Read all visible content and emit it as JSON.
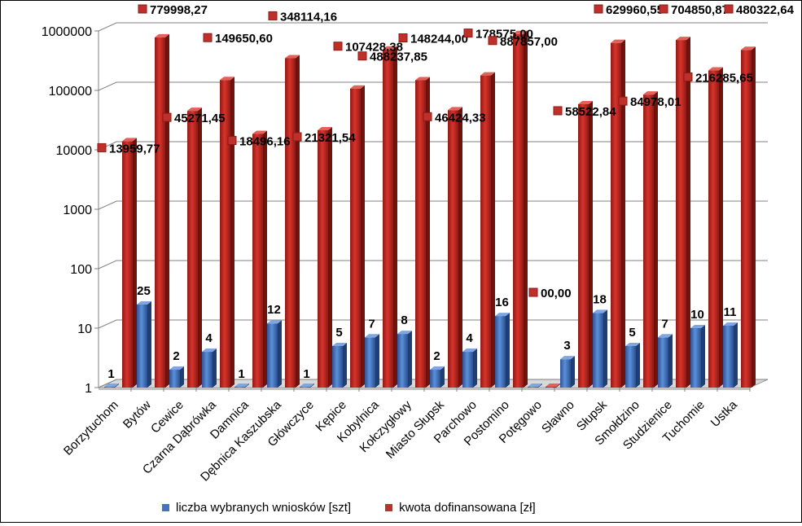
{
  "chart_data": {
    "type": "bar",
    "y_scale": "log",
    "ylim": [
      1,
      1000000
    ],
    "y_ticks": [
      "1",
      "10",
      "100",
      "1000",
      "10000",
      "100000",
      "1000000"
    ],
    "categories": [
      "Borzytuchom",
      "Bytów",
      "Cewice",
      "Czarna Dąbrówka",
      "Damnica",
      "Dębnica Kaszubska",
      "Główczyce",
      "Kępice",
      "Kobylnica",
      "Kołczygłowy",
      "Miasto Słupsk",
      "Parchowo",
      "Postomino",
      "Potęgowo",
      "Sławno",
      "Słupsk",
      "Smołdzino",
      "Studzienice",
      "Tuchomie",
      "Ustka"
    ],
    "series": [
      {
        "name": "liczba wybranych wniosków [szt]",
        "color": "#4472C4",
        "values": [
          1,
          25,
          2,
          4,
          1,
          12,
          1,
          5,
          7,
          8,
          2,
          4,
          16,
          0,
          3,
          18,
          5,
          7,
          10,
          11
        ],
        "labels": [
          "1",
          "25",
          "2",
          "4",
          "1",
          "12",
          "1",
          "5",
          "7",
          "8",
          "2",
          "4",
          "16",
          "",
          "3",
          "18",
          "5",
          "7",
          "10",
          "11"
        ]
      },
      {
        "name": "kwota dofinansowana [zł]",
        "color": "#C0302A",
        "values": [
          13959.77,
          779998.27,
          45271.45,
          149650.6,
          18496.16,
          348114.16,
          21321.54,
          107428.38,
          488237.85,
          148244.0,
          46424.33,
          178575.0,
          887857.0,
          0.0,
          58522.84,
          629960.55,
          84978.01,
          704850.87,
          216285.65,
          480322.64
        ],
        "labels": [
          "13959,77",
          "779998,27",
          "45271,45",
          "149650,60",
          "18496,16",
          "348114,16",
          "21321,54",
          "107428,38",
          "488237,85",
          "148244,00",
          "46424,33",
          "178575,00",
          "887857,00",
          "00,00",
          "58522,84",
          "629960,55",
          "84978,01",
          "704850,87",
          "216285,65",
          "480322,64"
        ]
      }
    ],
    "title": "",
    "xlabel": "",
    "ylabel": "",
    "legend_position": "bottom"
  }
}
